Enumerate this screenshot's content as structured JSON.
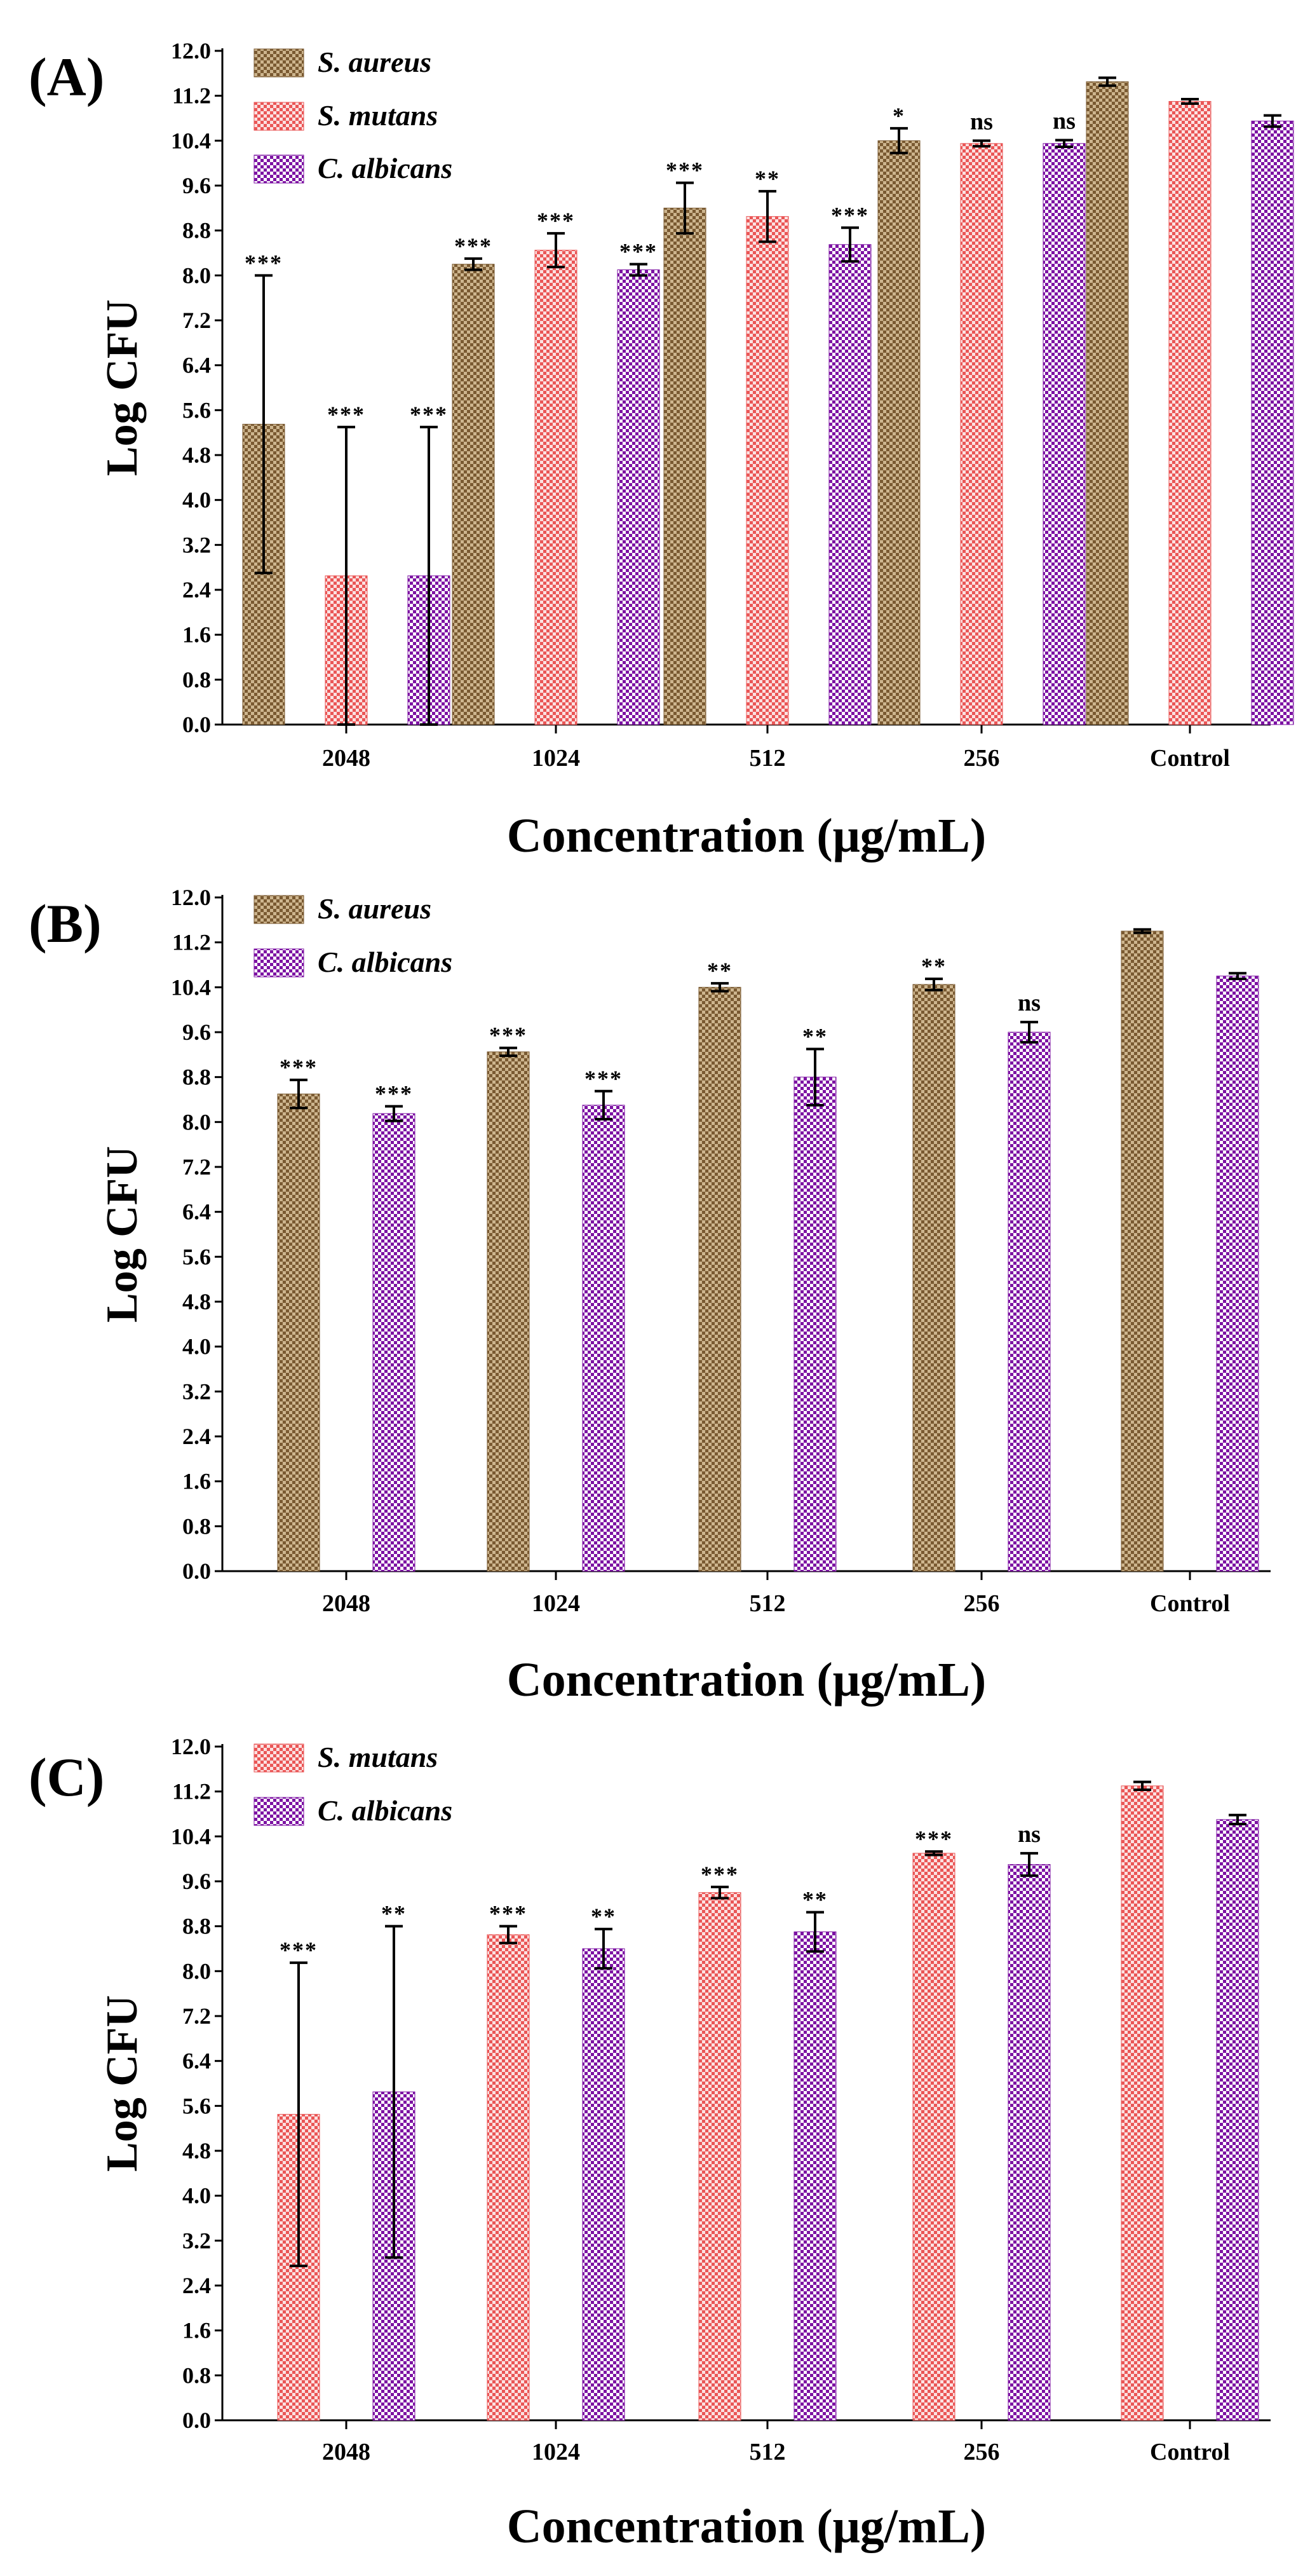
{
  "series_styles": {
    "S. aureus": {
      "base": "#cdb58e",
      "dot": "#7a5a32"
    },
    "S. mutans": {
      "base": "#fbe1e1",
      "dot": "#ea5656"
    },
    "C. albicans": {
      "base": "#ffffff",
      "dot": "#7d13a3"
    }
  },
  "chart_data": [
    {
      "type": "bar",
      "panel_label": "(A)",
      "ylabel": "Log CFU",
      "xlabel": "Concentration (μg/mL)",
      "ylim": [
        0,
        12
      ],
      "yticks": [
        "0.0",
        "0.8",
        "1.6",
        "2.4",
        "3.2",
        "4.0",
        "4.8",
        "5.6",
        "6.4",
        "7.2",
        "8.0",
        "8.8",
        "9.6",
        "10.4",
        "11.2",
        "12.0"
      ],
      "categories": [
        "2048",
        "1024",
        "512",
        "256",
        "Control"
      ],
      "legend": [
        "S. aureus",
        "S. mutans",
        "C. albicans"
      ],
      "series": [
        {
          "name": "S. aureus",
          "values": [
            5.35,
            8.2,
            9.2,
            10.4,
            11.45
          ],
          "errors": [
            2.65,
            0.1,
            0.45,
            0.22,
            0.07
          ],
          "significance": [
            "***",
            "***",
            "***",
            "*",
            ""
          ]
        },
        {
          "name": "S. mutans",
          "values": [
            2.65,
            8.45,
            9.05,
            10.35,
            11.1
          ],
          "errors": [
            2.65,
            0.3,
            0.45,
            0.05,
            0.04
          ],
          "significance": [
            "***",
            "***",
            "**",
            "ns",
            ""
          ]
        },
        {
          "name": "C. albicans",
          "values": [
            2.65,
            8.1,
            8.55,
            10.35,
            10.75
          ],
          "errors": [
            2.65,
            0.1,
            0.3,
            0.06,
            0.1
          ],
          "significance": [
            "***",
            "***",
            "***",
            "ns",
            ""
          ]
        }
      ]
    },
    {
      "type": "bar",
      "panel_label": "(B)",
      "ylabel": "Log CFU",
      "xlabel": "Concentration (μg/mL)",
      "ylim": [
        0,
        12
      ],
      "yticks": [
        "0.0",
        "0.8",
        "1.6",
        "2.4",
        "3.2",
        "4.0",
        "4.8",
        "5.6",
        "6.4",
        "7.2",
        "8.0",
        "8.8",
        "9.6",
        "10.4",
        "11.2",
        "12.0"
      ],
      "categories": [
        "2048",
        "1024",
        "512",
        "256",
        "Control"
      ],
      "legend": [
        "S. aureus",
        "C. albicans"
      ],
      "series": [
        {
          "name": "S. aureus",
          "values": [
            8.5,
            9.25,
            10.4,
            10.45,
            11.4
          ],
          "errors": [
            0.25,
            0.07,
            0.07,
            0.1,
            0.03
          ],
          "significance": [
            "***",
            "***",
            "**",
            "**",
            ""
          ]
        },
        {
          "name": "C. albicans",
          "values": [
            8.15,
            8.3,
            8.8,
            9.6,
            10.6
          ],
          "errors": [
            0.13,
            0.25,
            0.5,
            0.18,
            0.05
          ],
          "significance": [
            "***",
            "***",
            "**",
            "ns",
            ""
          ]
        }
      ]
    },
    {
      "type": "bar",
      "panel_label": "(C)",
      "ylabel": "Log CFU",
      "xlabel": "Concentration (μg/mL)",
      "ylim": [
        0,
        12
      ],
      "yticks": [
        "0.0",
        "0.8",
        "1.6",
        "2.4",
        "3.2",
        "4.0",
        "4.8",
        "5.6",
        "6.4",
        "7.2",
        "8.0",
        "8.8",
        "9.6",
        "10.4",
        "11.2",
        "12.0"
      ],
      "categories": [
        "2048",
        "1024",
        "512",
        "256",
        "Control"
      ],
      "legend": [
        "S. mutans",
        "C. albicans"
      ],
      "series": [
        {
          "name": "S. mutans",
          "values": [
            5.45,
            8.65,
            9.4,
            10.1,
            11.3
          ],
          "errors": [
            2.7,
            0.15,
            0.1,
            0.03,
            0.07
          ],
          "significance": [
            "***",
            "***",
            "***",
            "***",
            ""
          ]
        },
        {
          "name": "C. albicans",
          "values": [
            5.85,
            8.4,
            8.7,
            9.9,
            10.7
          ],
          "errors": [
            2.95,
            0.35,
            0.35,
            0.2,
            0.08
          ],
          "significance": [
            "**",
            "**",
            "**",
            "ns",
            ""
          ]
        }
      ]
    }
  ]
}
